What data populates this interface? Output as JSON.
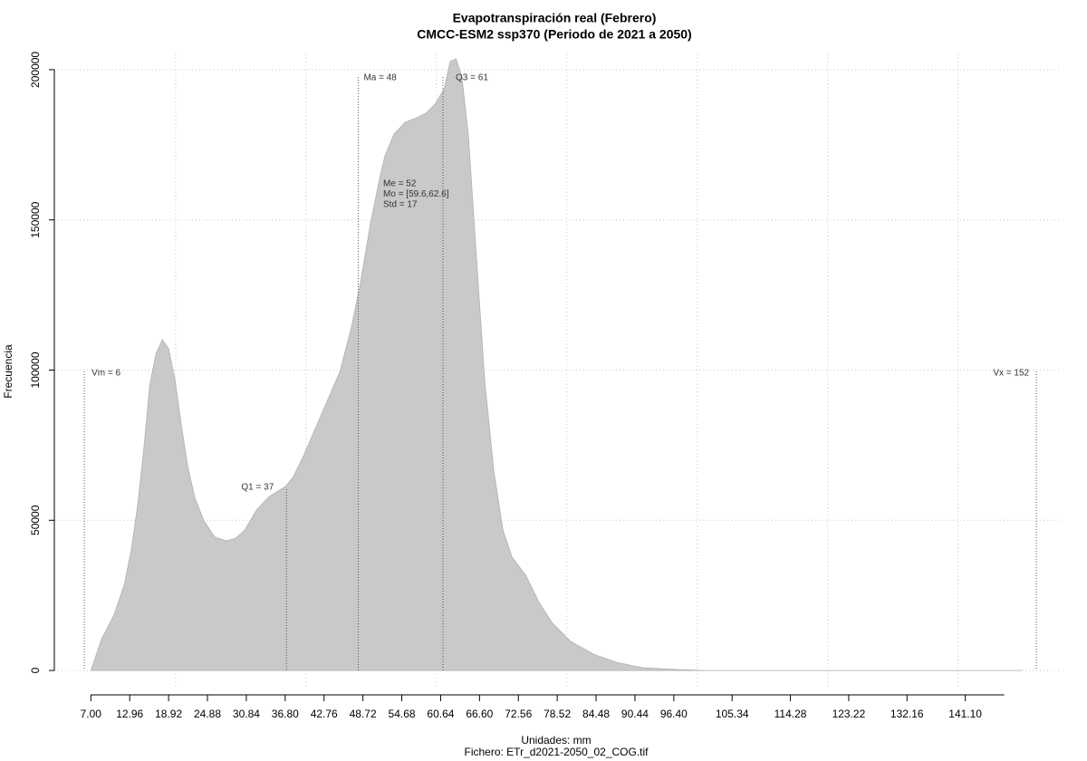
{
  "chart_data": {
    "type": "area",
    "title": "Evapotranspiración real (Febrero)",
    "subtitle": "CMCC-ESM2 ssp370 (Periodo de 2021 a 2050)",
    "xlabel": "Unidades: mm",
    "ylabel": "Frecuencia",
    "footer": "Fichero: ETr_d2021-2050_02_COG.tif",
    "color": "#c9c9c9",
    "x": [
      7,
      8.67,
      10.47,
      12.14,
      13.25,
      14.22,
      15.06,
      16.03,
      17.0,
      17.97,
      18.94,
      19.92,
      20.89,
      21.86,
      22.97,
      24.36,
      26.03,
      27.83,
      29.22,
      30.6,
      32.4,
      34.36,
      36.86,
      37.97,
      39.5,
      41.3,
      43.1,
      45.2,
      47.0,
      48.4,
      49.8,
      51.2,
      52.1,
      53.5,
      55.2,
      57.0,
      58.4,
      59.8,
      61.2,
      62.1,
      63.0,
      63.9,
      64.9,
      66.0,
      67.4,
      68.8,
      70.2,
      71.6,
      73.7,
      75.75,
      77.8,
      80.6,
      84.1,
      87.6,
      91.7,
      97.3,
      101.4,
      149.8
    ],
    "values": [
      0,
      10560,
      18100,
      28660,
      40720,
      55810,
      72400,
      95020,
      105580,
      110100,
      107090,
      96530,
      81450,
      67870,
      57320,
      49770,
      44340,
      43140,
      44040,
      46760,
      53390,
      57920,
      61240,
      64250,
      70890,
      79940,
      88990,
      99550,
      114630,
      129710,
      147810,
      162900,
      171340,
      178580,
      182500,
      184010,
      185520,
      188540,
      193670,
      202710,
      203620,
      197590,
      177980,
      141780,
      96530,
      66360,
      46760,
      37710,
      31670,
      22620,
      15690,
      9650,
      5430,
      2710,
      900,
      300,
      0,
      0
    ],
    "xlim": [
      1.4,
      155.6
    ],
    "ylim": [
      -5100,
      205100
    ],
    "xticks": [
      {
        "value": 7,
        "label": "7.00"
      },
      12.96,
      18.92,
      24.88,
      30.84,
      {
        "value": 36.8,
        "label": "36.80"
      },
      42.76,
      48.72,
      54.68,
      60.64,
      {
        "value": 66.6,
        "label": "66.60"
      },
      72.56,
      78.52,
      84.48,
      90.44,
      {
        "value": 96.4,
        "label": "96.40"
      },
      105.34,
      114.28,
      123.22,
      132.16,
      {
        "value": 141.1,
        "label": "141.10"
      }
    ],
    "yticks": [
      0,
      50000,
      100000,
      150000,
      200000
    ],
    "xgrid": [
      20,
      40,
      60,
      80,
      100,
      120,
      140
    ],
    "grid": true,
    "annotations": [
      {
        "x": 6,
        "label": "Vm = 6"
      },
      {
        "x": 37,
        "label": "Q1 = 37"
      },
      {
        "x": 48,
        "label": "Ma = 48"
      },
      {
        "x": 61,
        "label": "Q3 = 61"
      },
      {
        "x": 152,
        "label": "Vx = 152"
      }
    ],
    "stats": [
      "Me = 52",
      "Mo = [59.6,62.6]",
      "Std = 17"
    ]
  }
}
